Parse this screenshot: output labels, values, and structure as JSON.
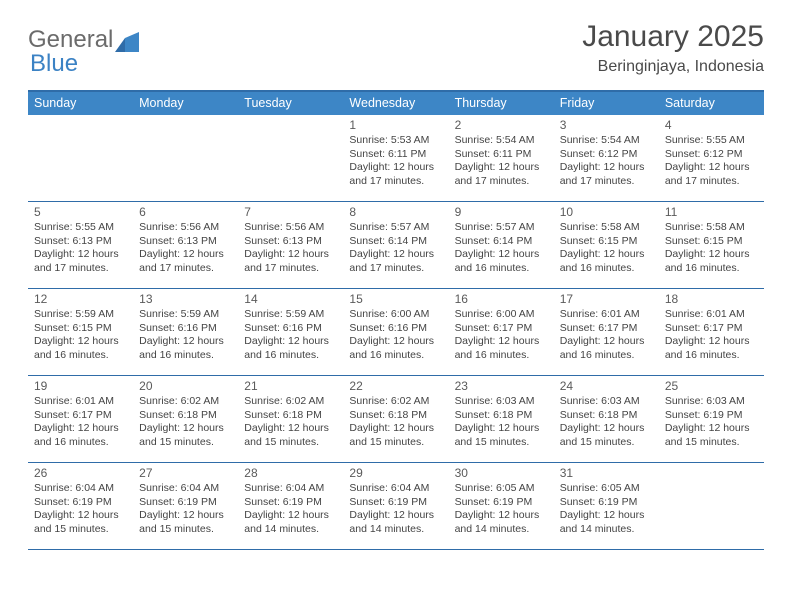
{
  "brand": {
    "part1": "General",
    "part2": "Blue"
  },
  "title": "January 2025",
  "location": "Beringinjaya, Indonesia",
  "colors": {
    "header_bg": "#3d86c6",
    "header_text": "#ffffff",
    "border": "#2f6ca8",
    "logo_gray": "#6b6b6b",
    "logo_blue": "#3b82c4",
    "text": "#444444",
    "title_text": "#4a4a4a",
    "background": "#ffffff"
  },
  "fonts": {
    "family": "Arial, Helvetica, sans-serif",
    "title_size_pt": 22,
    "location_size_pt": 12,
    "weekday_size_pt": 9.5,
    "cell_size_pt": 8
  },
  "weekdays": [
    "Sunday",
    "Monday",
    "Tuesday",
    "Wednesday",
    "Thursday",
    "Friday",
    "Saturday"
  ],
  "weeks": [
    [
      null,
      null,
      null,
      {
        "n": "1",
        "sunrise": "5:53 AM",
        "sunset": "6:11 PM",
        "daylight": "12 hours and 17 minutes."
      },
      {
        "n": "2",
        "sunrise": "5:54 AM",
        "sunset": "6:11 PM",
        "daylight": "12 hours and 17 minutes."
      },
      {
        "n": "3",
        "sunrise": "5:54 AM",
        "sunset": "6:12 PM",
        "daylight": "12 hours and 17 minutes."
      },
      {
        "n": "4",
        "sunrise": "5:55 AM",
        "sunset": "6:12 PM",
        "daylight": "12 hours and 17 minutes."
      }
    ],
    [
      {
        "n": "5",
        "sunrise": "5:55 AM",
        "sunset": "6:13 PM",
        "daylight": "12 hours and 17 minutes."
      },
      {
        "n": "6",
        "sunrise": "5:56 AM",
        "sunset": "6:13 PM",
        "daylight": "12 hours and 17 minutes."
      },
      {
        "n": "7",
        "sunrise": "5:56 AM",
        "sunset": "6:13 PM",
        "daylight": "12 hours and 17 minutes."
      },
      {
        "n": "8",
        "sunrise": "5:57 AM",
        "sunset": "6:14 PM",
        "daylight": "12 hours and 17 minutes."
      },
      {
        "n": "9",
        "sunrise": "5:57 AM",
        "sunset": "6:14 PM",
        "daylight": "12 hours and 16 minutes."
      },
      {
        "n": "10",
        "sunrise": "5:58 AM",
        "sunset": "6:15 PM",
        "daylight": "12 hours and 16 minutes."
      },
      {
        "n": "11",
        "sunrise": "5:58 AM",
        "sunset": "6:15 PM",
        "daylight": "12 hours and 16 minutes."
      }
    ],
    [
      {
        "n": "12",
        "sunrise": "5:59 AM",
        "sunset": "6:15 PM",
        "daylight": "12 hours and 16 minutes."
      },
      {
        "n": "13",
        "sunrise": "5:59 AM",
        "sunset": "6:16 PM",
        "daylight": "12 hours and 16 minutes."
      },
      {
        "n": "14",
        "sunrise": "5:59 AM",
        "sunset": "6:16 PM",
        "daylight": "12 hours and 16 minutes."
      },
      {
        "n": "15",
        "sunrise": "6:00 AM",
        "sunset": "6:16 PM",
        "daylight": "12 hours and 16 minutes."
      },
      {
        "n": "16",
        "sunrise": "6:00 AM",
        "sunset": "6:17 PM",
        "daylight": "12 hours and 16 minutes."
      },
      {
        "n": "17",
        "sunrise": "6:01 AM",
        "sunset": "6:17 PM",
        "daylight": "12 hours and 16 minutes."
      },
      {
        "n": "18",
        "sunrise": "6:01 AM",
        "sunset": "6:17 PM",
        "daylight": "12 hours and 16 minutes."
      }
    ],
    [
      {
        "n": "19",
        "sunrise": "6:01 AM",
        "sunset": "6:17 PM",
        "daylight": "12 hours and 16 minutes."
      },
      {
        "n": "20",
        "sunrise": "6:02 AM",
        "sunset": "6:18 PM",
        "daylight": "12 hours and 15 minutes."
      },
      {
        "n": "21",
        "sunrise": "6:02 AM",
        "sunset": "6:18 PM",
        "daylight": "12 hours and 15 minutes."
      },
      {
        "n": "22",
        "sunrise": "6:02 AM",
        "sunset": "6:18 PM",
        "daylight": "12 hours and 15 minutes."
      },
      {
        "n": "23",
        "sunrise": "6:03 AM",
        "sunset": "6:18 PM",
        "daylight": "12 hours and 15 minutes."
      },
      {
        "n": "24",
        "sunrise": "6:03 AM",
        "sunset": "6:18 PM",
        "daylight": "12 hours and 15 minutes."
      },
      {
        "n": "25",
        "sunrise": "6:03 AM",
        "sunset": "6:19 PM",
        "daylight": "12 hours and 15 minutes."
      }
    ],
    [
      {
        "n": "26",
        "sunrise": "6:04 AM",
        "sunset": "6:19 PM",
        "daylight": "12 hours and 15 minutes."
      },
      {
        "n": "27",
        "sunrise": "6:04 AM",
        "sunset": "6:19 PM",
        "daylight": "12 hours and 15 minutes."
      },
      {
        "n": "28",
        "sunrise": "6:04 AM",
        "sunset": "6:19 PM",
        "daylight": "12 hours and 14 minutes."
      },
      {
        "n": "29",
        "sunrise": "6:04 AM",
        "sunset": "6:19 PM",
        "daylight": "12 hours and 14 minutes."
      },
      {
        "n": "30",
        "sunrise": "6:05 AM",
        "sunset": "6:19 PM",
        "daylight": "12 hours and 14 minutes."
      },
      {
        "n": "31",
        "sunrise": "6:05 AM",
        "sunset": "6:19 PM",
        "daylight": "12 hours and 14 minutes."
      },
      null
    ]
  ],
  "labels": {
    "sunrise_prefix": "Sunrise: ",
    "sunset_prefix": "Sunset: ",
    "daylight_prefix": "Daylight: "
  }
}
